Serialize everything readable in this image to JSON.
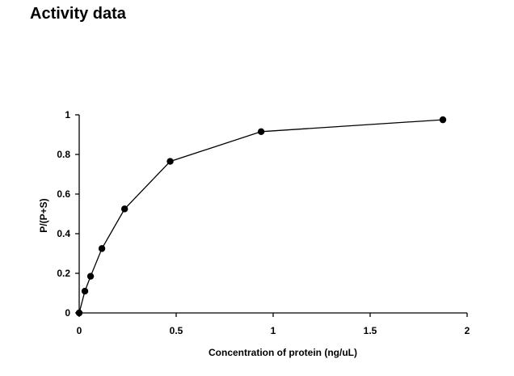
{
  "page": {
    "title": "Activity data"
  },
  "chart_data": {
    "type": "line",
    "title": "Activity data",
    "xlabel": "Concentration of protein (ng/uL)",
    "ylabel": "P/(P+S)",
    "xlim": [
      0,
      2
    ],
    "ylim": [
      0,
      1
    ],
    "x_ticks": [
      0,
      0.5,
      1,
      1.5,
      2
    ],
    "x_tick_labels": [
      "0",
      "0.5",
      "1",
      "1.5",
      "2"
    ],
    "y_ticks": [
      0,
      0.2,
      0.4,
      0.6,
      0.8,
      1
    ],
    "y_tick_labels": [
      "0",
      "0.2",
      "0.4",
      "0.6",
      "0.8",
      "1"
    ],
    "grid": false,
    "legend": "none",
    "series": [
      {
        "x": [
          0,
          0.0293,
          0.0586,
          0.117,
          0.234,
          0.469,
          0.938,
          1.875
        ],
        "y": [
          0,
          0.11,
          0.185,
          0.325,
          0.525,
          0.765,
          0.915,
          0.975
        ],
        "color": "#000000",
        "marker": "circle"
      }
    ]
  }
}
